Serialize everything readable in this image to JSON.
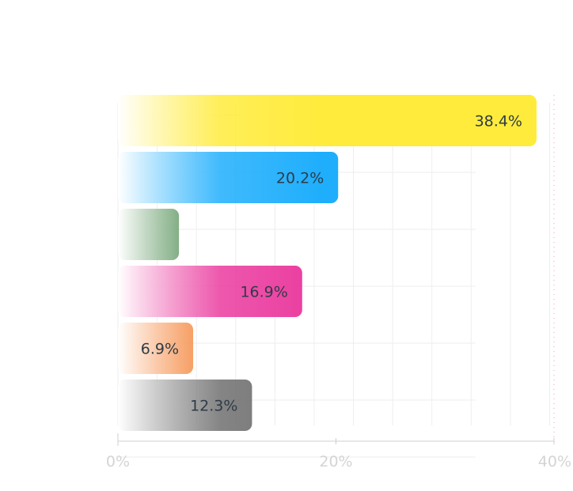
{
  "chart_data": {
    "type": "bar",
    "orientation": "horizontal",
    "title": "",
    "xlabel": "",
    "ylabel": "",
    "xlim": [
      0,
      40
    ],
    "x_ticks": [
      {
        "value": 0,
        "label": "0%"
      },
      {
        "value": 20,
        "label": "20%"
      },
      {
        "value": 40,
        "label": "40%"
      }
    ],
    "grid": true,
    "legend": "none",
    "bars": [
      {
        "value": 38.4,
        "label": "38.4%",
        "color": "#ffeb3b"
      },
      {
        "value": 20.2,
        "label": "20.2%",
        "color": "#1eaefc"
      },
      {
        "value": 5.6,
        "label": "",
        "color": "#1b6b1f"
      },
      {
        "value": 16.9,
        "label": "16.9%",
        "color": "#ea3a9e"
      },
      {
        "value": 6.9,
        "label": "6.9%",
        "color": "#f26c12"
      },
      {
        "value": 12.3,
        "label": "12.3%",
        "color": "#6f6f6f"
      }
    ]
  }
}
